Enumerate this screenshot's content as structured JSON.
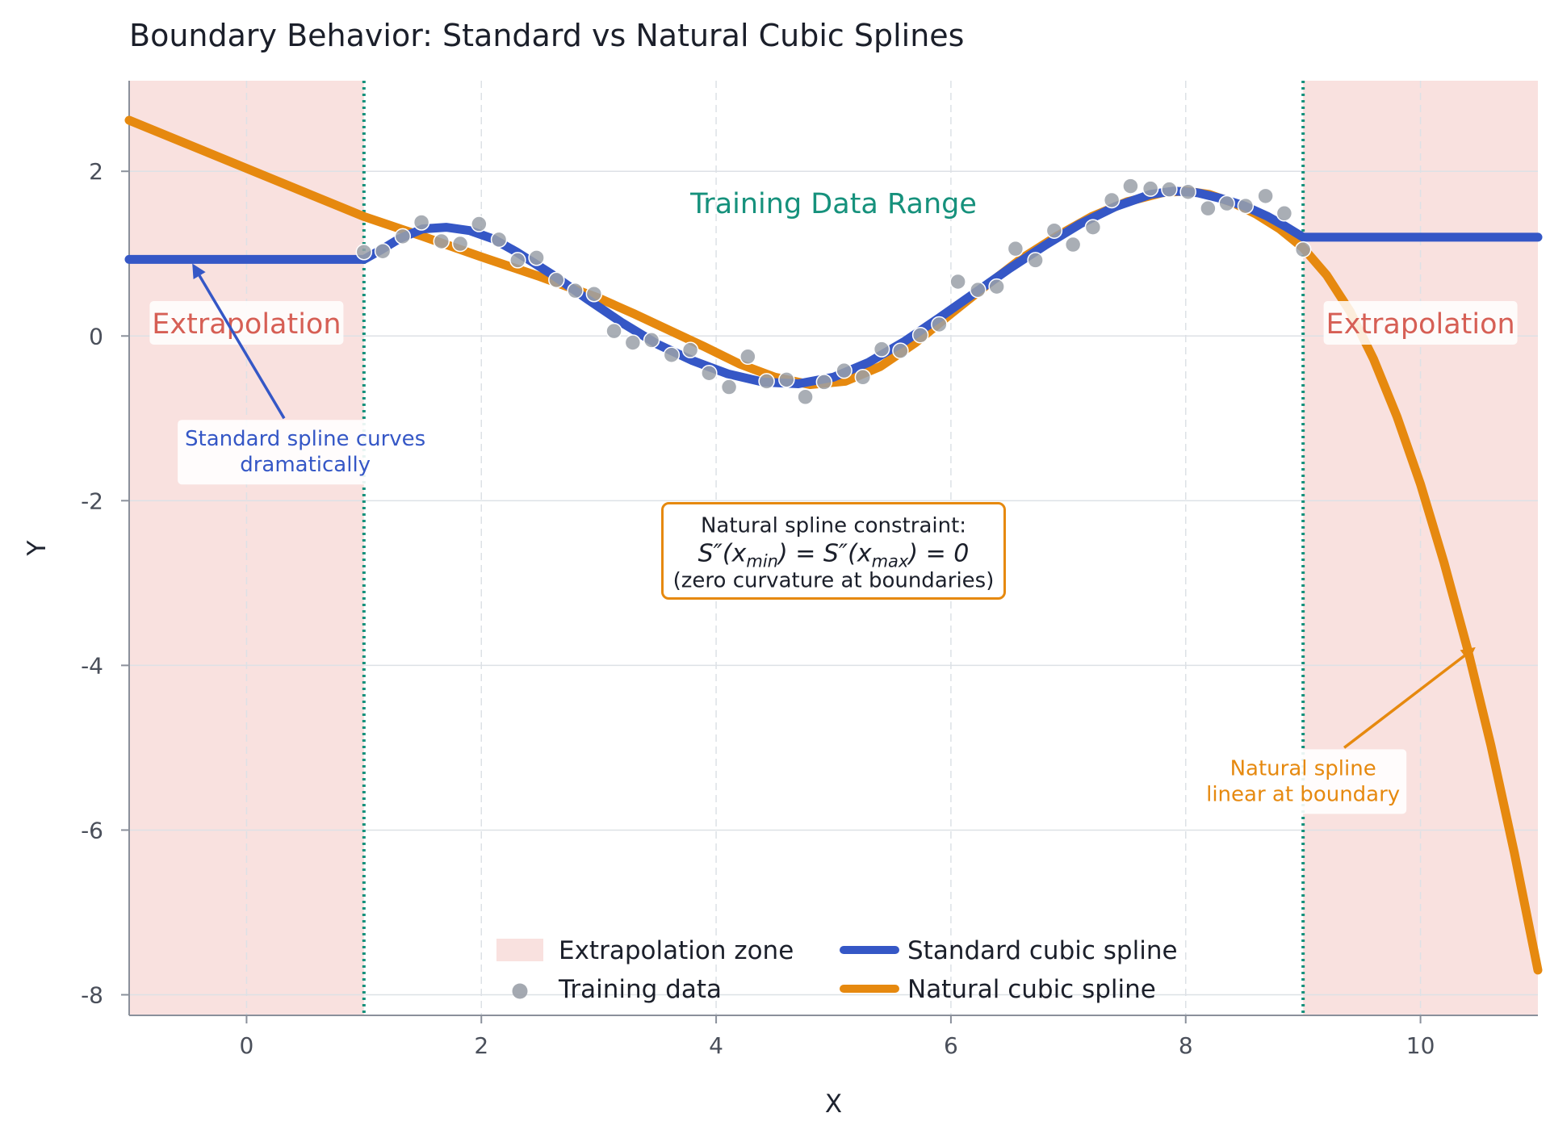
{
  "title": "Boundary Behavior: Standard vs Natural Cubic Splines",
  "chart_data": {
    "type": "line",
    "title": "Boundary Behavior: Standard vs Natural Cubic Splines",
    "xlabel": "X",
    "ylabel": "Y",
    "xlim": [
      -1,
      11
    ],
    "ylim": [
      -8.25,
      3.1
    ],
    "x_ticks": [
      0,
      2,
      4,
      6,
      8,
      10
    ],
    "y_ticks": [
      -8,
      -6,
      -4,
      -2,
      0,
      2
    ],
    "x_tick_labels": [
      "0",
      "2",
      "4",
      "6",
      "8",
      "10"
    ],
    "y_tick_labels": [
      "-8",
      "-6",
      "-4",
      "-2",
      "0",
      "2"
    ],
    "grid": true,
    "training_range": [
      1,
      9
    ],
    "extrapolation_zones": [
      [
        -1,
        1
      ],
      [
        9,
        11
      ]
    ],
    "series": [
      {
        "name": "Training data",
        "kind": "scatter",
        "color": "#9aa0a8",
        "x": [
          1.0,
          1.16,
          1.33,
          1.49,
          1.66,
          1.82,
          1.98,
          2.15,
          2.31,
          2.47,
          2.64,
          2.8,
          2.96,
          3.13,
          3.29,
          3.45,
          3.62,
          3.78,
          3.94,
          4.11,
          4.27,
          4.43,
          4.6,
          4.76,
          4.92,
          5.09,
          5.25,
          5.41,
          5.57,
          5.74,
          5.9,
          6.06,
          6.23,
          6.39,
          6.55,
          6.72,
          6.88,
          7.04,
          7.21,
          7.37,
          7.53,
          7.7,
          7.86,
          8.02,
          8.19,
          8.35,
          8.51,
          8.68,
          8.84,
          9.0
        ],
        "y": [
          1.02,
          1.03,
          1.21,
          1.38,
          1.15,
          1.12,
          1.36,
          1.17,
          0.92,
          0.95,
          0.68,
          0.55,
          0.51,
          0.06,
          -0.08,
          -0.05,
          -0.23,
          -0.17,
          -0.45,
          -0.62,
          -0.25,
          -0.55,
          -0.53,
          -0.74,
          -0.56,
          -0.42,
          -0.5,
          -0.16,
          -0.18,
          0.01,
          0.14,
          0.66,
          0.56,
          0.6,
          1.06,
          0.92,
          1.28,
          1.11,
          1.32,
          1.65,
          1.82,
          1.79,
          1.78,
          1.75,
          1.55,
          1.61,
          1.58,
          1.7,
          1.49,
          1.05
        ]
      },
      {
        "name": "Standard cubic spline",
        "kind": "line",
        "color": "#3557c6",
        "x": [
          -1.0,
          1.0,
          1.15,
          1.3,
          1.5,
          1.7,
          1.9,
          2.1,
          2.3,
          2.6,
          2.9,
          3.2,
          3.5,
          3.8,
          4.1,
          4.4,
          4.7,
          5.0,
          5.3,
          5.6,
          5.9,
          6.2,
          6.5,
          6.8,
          7.1,
          7.4,
          7.7,
          7.9,
          8.1,
          8.3,
          8.5,
          8.7,
          8.85,
          9.0,
          9.0,
          11.0
        ],
        "y": [
          0.93,
          0.93,
          1.05,
          1.18,
          1.3,
          1.32,
          1.28,
          1.18,
          1.02,
          0.75,
          0.45,
          0.16,
          -0.1,
          -0.3,
          -0.46,
          -0.56,
          -0.58,
          -0.5,
          -0.32,
          -0.07,
          0.22,
          0.52,
          0.82,
          1.1,
          1.36,
          1.57,
          1.72,
          1.76,
          1.74,
          1.67,
          1.58,
          1.45,
          1.33,
          1.2,
          1.2,
          1.2
        ]
      },
      {
        "name": "Natural cubic spline",
        "kind": "line",
        "color": "#e6890f",
        "x": [
          -1.0,
          1.0,
          1.5,
          2.0,
          2.5,
          3.0,
          3.3,
          3.6,
          3.9,
          4.2,
          4.5,
          4.8,
          5.1,
          5.4,
          5.7,
          6.0,
          6.3,
          6.6,
          6.9,
          7.2,
          7.5,
          7.8,
          8.0,
          8.2,
          8.4,
          8.6,
          8.8,
          9.0,
          9.2,
          9.4,
          9.6,
          9.8,
          10.0,
          10.2,
          10.4,
          10.6,
          10.8,
          11.0
        ],
        "y": [
          2.62,
          1.45,
          1.21,
          0.96,
          0.72,
          0.46,
          0.27,
          0.07,
          -0.13,
          -0.34,
          -0.5,
          -0.59,
          -0.55,
          -0.37,
          -0.08,
          0.27,
          0.61,
          0.94,
          1.21,
          1.45,
          1.63,
          1.74,
          1.76,
          1.72,
          1.62,
          1.48,
          1.3,
          1.07,
          0.74,
          0.3,
          -0.28,
          -0.98,
          -1.8,
          -2.75,
          -3.8,
          -4.97,
          -6.28,
          -7.7
        ]
      }
    ],
    "legend": {
      "position": "lower-center",
      "entries": [
        {
          "label": "Extrapolation zone",
          "kind": "patch",
          "color": "#f9e1df"
        },
        {
          "label": "Training data",
          "kind": "marker",
          "color": "#9aa0a8"
        },
        {
          "label": "Standard cubic spline",
          "kind": "line",
          "color": "#3557c6"
        },
        {
          "label": "Natural cubic spline",
          "kind": "line",
          "color": "#e6890f"
        }
      ]
    },
    "annotations": {
      "training_range": {
        "text": "Training Data Range",
        "x": 5.0,
        "y": 1.6,
        "color": "#16917c"
      },
      "extrapolation_left": {
        "text": "Extrapolation",
        "x": 0.0,
        "y": 0.15,
        "color": "#d65f55"
      },
      "extrapolation_right": {
        "text": "Extrapolation",
        "x": 10.0,
        "y": 0.15,
        "color": "#d65f55"
      },
      "standard_note": {
        "lines": [
          "Standard spline curves",
          "dramatically"
        ],
        "x": 0.5,
        "y": -1.45,
        "color": "#3557c6",
        "arrow_from": [
          0.32,
          -1.0
        ],
        "arrow_to": [
          -0.45,
          0.85
        ]
      },
      "natural_note": {
        "lines": [
          "Natural spline",
          "linear at boundary"
        ],
        "x": 9.0,
        "y": -5.45,
        "color": "#e6890f",
        "arrow_from": [
          9.35,
          -5.0
        ],
        "arrow_to": [
          10.45,
          -3.8
        ]
      },
      "constraint_box": {
        "line1": "Natural spline constraint:",
        "formula": [
          "S″(x",
          "min",
          ") = S″(x",
          "max",
          ") = 0"
        ],
        "line3": "(zero curvature at boundaries)",
        "x": 5.0,
        "y": -2.6,
        "border_color": "#e6890f"
      }
    }
  }
}
